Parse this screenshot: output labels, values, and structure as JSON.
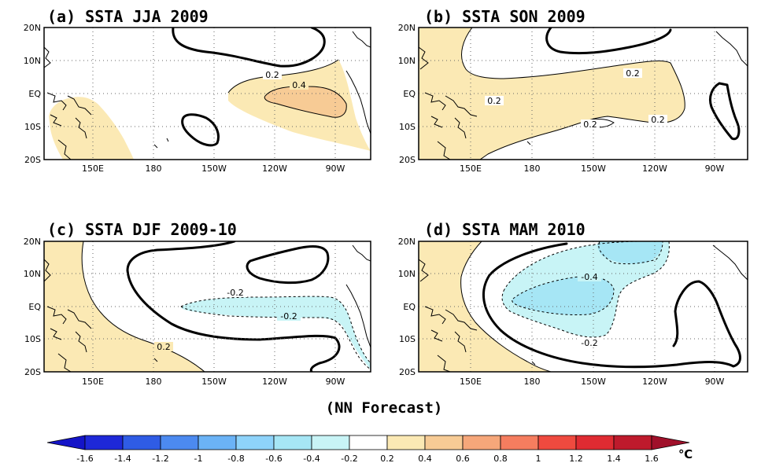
{
  "colors": {
    "warm_02_04": "#FBE9B4",
    "warm_04_06": "#F7CB95",
    "cool_02_04": "#C8F4F6",
    "cool_04_06": "#A6E6F5",
    "contour": "#000000",
    "land": "#000000"
  },
  "axes": {
    "lon_ticks": [
      "150E",
      "180",
      "150W",
      "120W",
      "90W"
    ],
    "lat_ticks": [
      "20N",
      "10N",
      "EQ",
      "10S",
      "20S"
    ]
  },
  "panels": [
    {
      "title": "(a) SSTA JJA 2009",
      "labels": [
        "0.2",
        "0.4"
      ]
    },
    {
      "title": "(b) SSTA SON 2009",
      "labels": [
        "0.2",
        "0.2",
        "0.2",
        "0.2"
      ]
    },
    {
      "title": "(c) SSTA DJF 2009-10",
      "labels": [
        "-0.2",
        "-0.2",
        "0.2"
      ]
    },
    {
      "title": "(d) SSTA MAM 2010",
      "labels": [
        "-0.4",
        "-0.2"
      ]
    }
  ],
  "footer": "(NN Forecast)",
  "colorbar": {
    "labels": [
      "-1.6",
      "-1.4",
      "-1.2",
      "-1",
      "-0.8",
      "-0.6",
      "-0.4",
      "-0.2",
      "0.2",
      "0.4",
      "0.6",
      "0.8",
      "1",
      "1.2",
      "1.4",
      "1.6"
    ],
    "colors": [
      "#1E28D8",
      "#2F5CE5",
      "#4C8AF0",
      "#6BB3F6",
      "#8ED3FA",
      "#A6E6F5",
      "#C8F4F6",
      "#FFFFFF",
      "#FBE9B4",
      "#F7CB95",
      "#F6A77A",
      "#F57D5F",
      "#EF4A3F",
      "#DF2B32",
      "#BE1A2C"
    ],
    "low_color": "#1414C8",
    "high_color": "#A0102A",
    "unit": "℃"
  }
}
